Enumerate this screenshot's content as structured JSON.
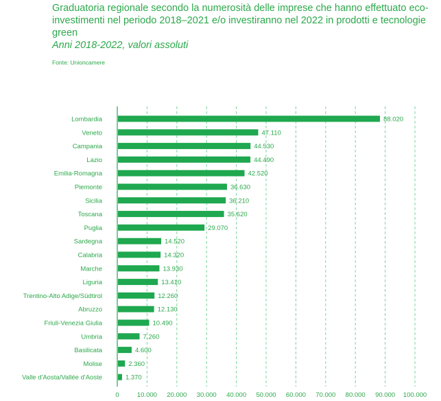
{
  "chart_data": {
    "type": "bar",
    "orientation": "horizontal",
    "title": "Graduatoria regionale secondo la numerosità delle imprese che hanno effettuato eco-investimenti nel periodo 2018–2021 e/o investiranno nel 2022 in prodotti e tecnologie green",
    "subtitle": "Anni 2018-2022, valori assoluti",
    "source": "Fonte: Unioncamere",
    "categories": [
      "Lombardia",
      "Veneto",
      "Campania",
      "Lazio",
      "Emilia-Romagna",
      "Piemonte",
      "Sicilia",
      "Toscana",
      "Puglia",
      "Sardegna",
      "Calabria",
      "Marche",
      "Liguria",
      "Trentino-Alto Adige/Südtirol",
      "Abruzzo",
      "Friuli-Venezia Giulia",
      "Umbria",
      "Basilicata",
      "Molise",
      "Valle d'Aosta/Vallée d'Aoste"
    ],
    "values": [
      88020,
      47110,
      44530,
      44490,
      42520,
      36630,
      36210,
      35620,
      29070,
      14520,
      14320,
      13930,
      13410,
      12260,
      12130,
      10490,
      7260,
      4600,
      2360,
      1370
    ],
    "value_labels": [
      "88.020",
      "47.110",
      "44.530",
      "44.490",
      "42.520",
      "36.630",
      "36.210",
      "35.620",
      "29.070",
      "14.520",
      "14.320",
      "13.930",
      "13.410",
      "12.260",
      "12.130",
      "10.490",
      "7.260",
      "4.600",
      "2.360",
      "1.370"
    ],
    "xlim": [
      0,
      100000
    ],
    "xticks": [
      0,
      10000,
      20000,
      30000,
      40000,
      50000,
      60000,
      70000,
      80000,
      90000,
      100000
    ],
    "xtick_labels": [
      "0",
      "10.000",
      "20.000",
      "30.000",
      "40.000",
      "50.000",
      "60.000",
      "70.000",
      "80.000",
      "90.000",
      "100.000"
    ],
    "grid": "vertical dashed",
    "colors": {
      "bar": "#1fa84f",
      "text": "#2ca84b",
      "grid": "#7fd3a0"
    }
  }
}
